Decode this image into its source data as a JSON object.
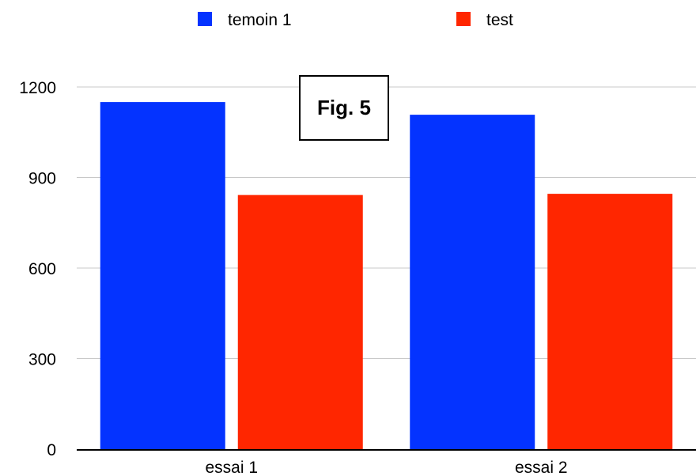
{
  "chart_data": {
    "type": "bar",
    "categories": [
      "essai 1",
      "essai 2"
    ],
    "series": [
      {
        "name": "temoin 1",
        "values": [
          1150,
          1108
        ],
        "color": "#0433FF"
      },
      {
        "name": "test",
        "values": [
          842,
          846
        ],
        "color": "#FF2600"
      }
    ],
    "y_ticks": [
      0,
      300,
      600,
      900,
      1200
    ],
    "ylim": [
      0,
      1200
    ],
    "grid": true,
    "legend_position": "top",
    "annotation": "Fig. 5"
  }
}
